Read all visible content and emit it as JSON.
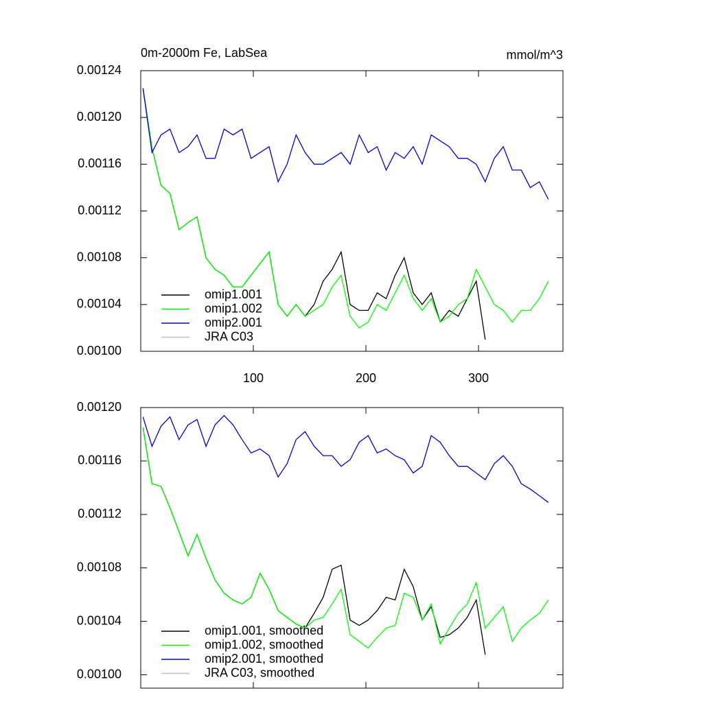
{
  "chart_data": [
    {
      "type": "line",
      "title": "0m-2000m Fe, LabSea",
      "units": "mmol/m^3",
      "x": [
        2,
        10,
        18,
        26,
        34,
        42,
        50,
        58,
        66,
        74,
        82,
        90,
        98,
        106,
        114,
        122,
        130,
        138,
        146,
        154,
        162,
        170,
        178,
        186,
        194,
        202,
        210,
        218,
        226,
        234,
        242,
        250,
        258,
        266,
        274,
        282,
        290,
        298,
        306,
        314,
        322,
        330,
        338,
        346,
        354,
        362
      ],
      "xlim": [
        0,
        375
      ],
      "xticks": [
        100,
        200,
        300
      ],
      "show_xtick_labels": true,
      "ylim": [
        0.001,
        0.00124
      ],
      "yticks": [
        {
          "value": 0.001,
          "label": "0.00100"
        },
        {
          "value": 0.00104,
          "label": "0.00104"
        },
        {
          "value": 0.00108,
          "label": "0.00108"
        },
        {
          "value": 0.00112,
          "label": "0.00112"
        },
        {
          "value": 0.00116,
          "label": "0.00116"
        },
        {
          "value": 0.0012,
          "label": "0.00120"
        },
        {
          "value": 0.00124,
          "label": "0.00124"
        }
      ],
      "series": [
        {
          "name": "omip1.001",
          "color": "#000000",
          "values": [
            0.001225,
            0.001174,
            0.001142,
            0.001135,
            0.001104,
            0.00111,
            0.001115,
            0.00108,
            0.00107,
            0.001065,
            0.001055,
            0.001055,
            0.001065,
            0.001075,
            0.001085,
            0.00104,
            0.00103,
            0.00104,
            0.00103,
            0.00104,
            0.00106,
            0.00107,
            0.001085,
            0.00104,
            0.001035,
            0.001035,
            0.00105,
            0.001045,
            0.001065,
            0.00108,
            0.00105,
            0.00104,
            0.00105,
            0.001025,
            0.001035,
            0.00103,
            0.001045,
            0.00106,
            0.00101,
            null,
            null,
            null,
            null,
            null,
            null,
            null
          ]
        },
        {
          "name": "omip1.002",
          "color": "#00ff00",
          "values": [
            0.001225,
            0.001174,
            0.001142,
            0.001135,
            0.001104,
            0.00111,
            0.001115,
            0.00108,
            0.00107,
            0.001065,
            0.001055,
            0.001055,
            0.001065,
            0.001075,
            0.001085,
            0.00104,
            0.00103,
            0.00104,
            0.00103,
            0.001035,
            0.00104,
            0.001055,
            0.001065,
            0.00103,
            0.00102,
            0.001025,
            0.00104,
            0.001035,
            0.00105,
            0.001065,
            0.001045,
            0.001035,
            0.001045,
            0.001025,
            0.00103,
            0.00104,
            0.001045,
            0.00107,
            0.001055,
            0.00104,
            0.001035,
            0.001025,
            0.001035,
            0.001035,
            0.001045,
            0.00106
          ]
        },
        {
          "name": "omip2.001",
          "color": "#0000cc",
          "values": [
            0.001225,
            0.00117,
            0.001185,
            0.00119,
            0.00117,
            0.001175,
            0.001185,
            0.001165,
            0.001165,
            0.00119,
            0.001185,
            0.00119,
            0.001165,
            0.00117,
            0.001175,
            0.001145,
            0.00116,
            0.001185,
            0.00117,
            0.00116,
            0.00116,
            0.001165,
            0.00117,
            0.00116,
            0.001185,
            0.00117,
            0.001175,
            0.001155,
            0.00117,
            0.001165,
            0.001175,
            0.00116,
            0.001185,
            0.00118,
            0.001175,
            0.001165,
            0.001165,
            0.00116,
            0.001145,
            0.001165,
            0.001175,
            0.001155,
            0.001155,
            0.00114,
            0.001145,
            0.00113
          ]
        },
        {
          "name": "JRA C03",
          "color": "#c0c0c0",
          "values": [
            null,
            null,
            null,
            null,
            null,
            null,
            null,
            null,
            null,
            null,
            null,
            null,
            null,
            null,
            null,
            null,
            null,
            null,
            null,
            null,
            null,
            null,
            null,
            null,
            null,
            null,
            null,
            null,
            null,
            null,
            null,
            null,
            null,
            null,
            null,
            null,
            null,
            null,
            null,
            null,
            null,
            null,
            null,
            null,
            null,
            null
          ]
        }
      ]
    },
    {
      "type": "line",
      "x": [
        2,
        10,
        18,
        26,
        34,
        42,
        50,
        58,
        66,
        74,
        82,
        90,
        98,
        106,
        114,
        122,
        130,
        138,
        146,
        154,
        162,
        170,
        178,
        186,
        194,
        202,
        210,
        218,
        226,
        234,
        242,
        250,
        258,
        266,
        274,
        282,
        290,
        298,
        306,
        314,
        322,
        330,
        338,
        346,
        354,
        362
      ],
      "xlim": [
        0,
        375
      ],
      "xticks": [
        100,
        200,
        300
      ],
      "show_xtick_labels": false,
      "ylim": [
        0.00099,
        0.0012
      ],
      "yticks": [
        {
          "value": 0.001,
          "label": "0.00100"
        },
        {
          "value": 0.00104,
          "label": "0.00104"
        },
        {
          "value": 0.00108,
          "label": "0.00108"
        },
        {
          "value": 0.00112,
          "label": "0.00112"
        },
        {
          "value": 0.00116,
          "label": "0.00116"
        },
        {
          "value": 0.0012,
          "label": "0.00120"
        }
      ],
      "series": [
        {
          "name": "omip1.001, smoothed",
          "color": "#000000",
          "values": [
            0.001185,
            0.001143,
            0.001141,
            0.001125,
            0.001107,
            0.001089,
            0.001105,
            0.001087,
            0.001071,
            0.001061,
            0.001056,
            0.001053,
            0.001058,
            0.001076,
            0.001064,
            0.001048,
            0.001043,
            0.001038,
            0.001035,
            0.001046,
            0.001058,
            0.001079,
            0.001082,
            0.001041,
            0.001037,
            0.001041,
            0.001048,
            0.001058,
            0.001056,
            0.001079,
            0.001066,
            0.001041,
            0.001051,
            0.001028,
            0.00103,
            0.001035,
            0.001043,
            0.001056,
            0.001015,
            null,
            null,
            null,
            null,
            null,
            null,
            null
          ]
        },
        {
          "name": "omip1.002, smoothed",
          "color": "#00ff00",
          "values": [
            0.001185,
            0.001143,
            0.001141,
            0.001125,
            0.001107,
            0.001089,
            0.001105,
            0.001087,
            0.001071,
            0.001061,
            0.001056,
            0.001053,
            0.001058,
            0.001076,
            0.001064,
            0.001048,
            0.001043,
            0.001038,
            0.001035,
            0.001041,
            0.001043,
            0.001053,
            0.001064,
            0.00103,
            0.001025,
            0.00102,
            0.001028,
            0.001035,
            0.001037,
            0.001061,
            0.001058,
            0.001041,
            0.001053,
            0.001023,
            0.001035,
            0.001046,
            0.001053,
            0.001069,
            0.001035,
            0.001043,
            0.001051,
            0.001025,
            0.001035,
            0.001041,
            0.001046,
            0.001056
          ]
        },
        {
          "name": "omip2.001, smoothed",
          "color": "#0000cc",
          "values": [
            0.001193,
            0.001171,
            0.001186,
            0.001193,
            0.001176,
            0.001187,
            0.001191,
            0.001171,
            0.001187,
            0.001194,
            0.001187,
            0.001176,
            0.001166,
            0.001169,
            0.001164,
            0.001148,
            0.001158,
            0.001176,
            0.001182,
            0.001171,
            0.001164,
            0.001164,
            0.001156,
            0.001161,
            0.001174,
            0.001179,
            0.001166,
            0.001169,
            0.001164,
            0.001161,
            0.001151,
            0.001156,
            0.001179,
            0.001174,
            0.001164,
            0.001156,
            0.001156,
            0.001151,
            0.001146,
            0.001158,
            0.001164,
            0.001156,
            0.001143,
            0.001139,
            0.001134,
            0.001129
          ]
        },
        {
          "name": "JRA C03, smoothed",
          "color": "#c0c0c0",
          "values": [
            null,
            null,
            null,
            null,
            null,
            null,
            null,
            null,
            null,
            null,
            null,
            null,
            null,
            null,
            null,
            null,
            null,
            null,
            null,
            null,
            null,
            null,
            null,
            null,
            null,
            null,
            null,
            null,
            null,
            null,
            null,
            null,
            null,
            null,
            null,
            null,
            null,
            null,
            null,
            null,
            null,
            null,
            null,
            null,
            null,
            null
          ]
        }
      ]
    }
  ]
}
